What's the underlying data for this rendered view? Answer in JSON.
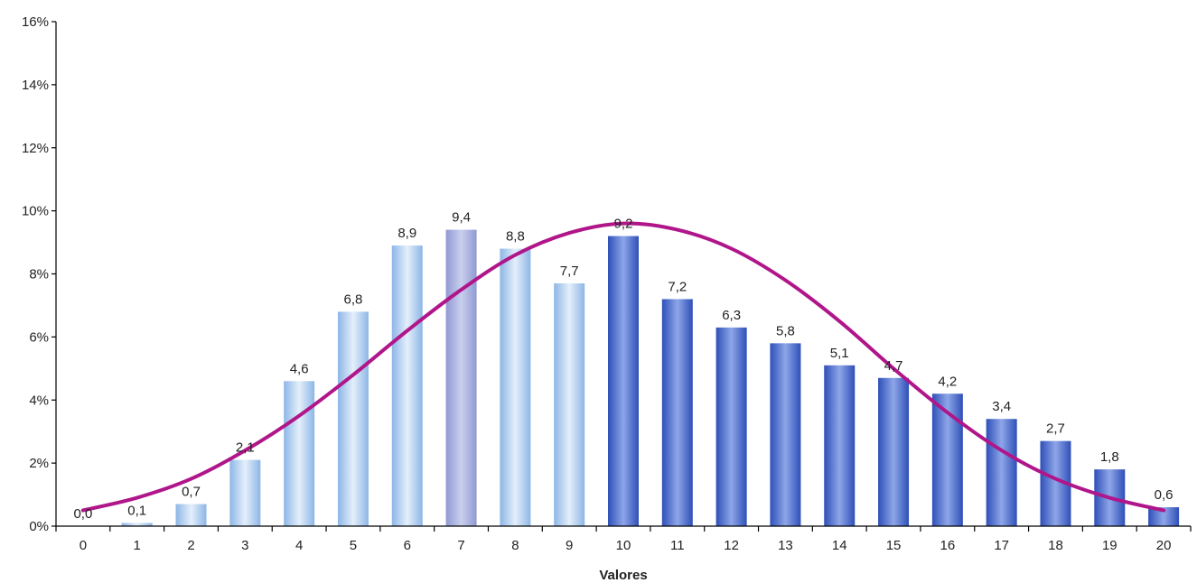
{
  "chart_data": {
    "type": "bar",
    "title": "",
    "xlabel": "Valores",
    "ylabel": "",
    "categories": [
      "0",
      "1",
      "2",
      "3",
      "4",
      "5",
      "6",
      "7",
      "8",
      "9",
      "10",
      "11",
      "12",
      "13",
      "14",
      "15",
      "16",
      "17",
      "18",
      "19",
      "20"
    ],
    "series": [
      {
        "values": [
          0.0,
          0.1,
          0.7,
          2.1,
          4.6,
          6.8,
          8.9,
          9.4,
          8.8,
          7.7,
          9.2,
          7.2,
          6.3,
          5.8,
          5.1,
          4.7,
          4.2,
          3.4,
          2.7,
          1.8,
          0.6
        ],
        "labels": [
          "0,0",
          "0,1",
          "0,7",
          "2,1",
          "4,6",
          "6,8",
          "8,9",
          "9,4",
          "8,8",
          "7,7",
          "9,2",
          "7,2",
          "6,3",
          "5,8",
          "5,1",
          "4,7",
          "4,2",
          "3,4",
          "2,7",
          "1,8",
          "0,6"
        ]
      }
    ],
    "curve": {
      "type": "line",
      "x": [
        0,
        1,
        2,
        3,
        4,
        5,
        6,
        7,
        8,
        9,
        10,
        11,
        12,
        13,
        14,
        15,
        16,
        17,
        18,
        19,
        20
      ],
      "y": [
        0.5,
        0.9,
        1.5,
        2.4,
        3.5,
        4.8,
        6.2,
        7.5,
        8.6,
        9.3,
        9.6,
        9.4,
        8.8,
        7.8,
        6.5,
        5.0,
        3.6,
        2.4,
        1.5,
        0.9,
        0.5
      ],
      "color": "#B0168A"
    },
    "bar_colors": {
      "light": "#A9CBEE",
      "highlight": "#9AA4D8",
      "dark": "#3F5FC4"
    },
    "y_ticks": [
      "0%",
      "2%",
      "4%",
      "6%",
      "8%",
      "10%",
      "12%",
      "14%",
      "16%"
    ],
    "ylim": [
      0,
      16
    ],
    "grid": false,
    "legend": "none"
  }
}
